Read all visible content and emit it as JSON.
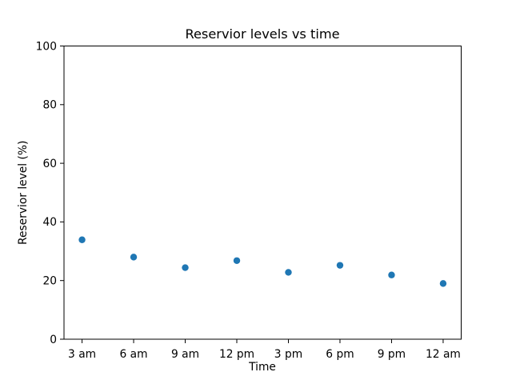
{
  "window": {
    "background_color": "#ffffff"
  },
  "chart_data": {
    "type": "scatter",
    "title": "Reservior levels vs time",
    "xlabel": "Time",
    "ylabel": "Reservior level (%)",
    "categories": [
      "3 am",
      "6 am",
      "9 am",
      "12 pm",
      "3 pm",
      "6 pm",
      "9 pm",
      "12 am"
    ],
    "values": [
      33.9,
      28.0,
      24.4,
      26.8,
      22.8,
      25.2,
      21.9,
      19.0
    ],
    "ylim": [
      0,
      100
    ],
    "yticks": [
      0,
      20,
      40,
      60,
      80,
      100
    ],
    "grid": false,
    "legend": "none",
    "marker": "circle",
    "marker_color": "#1f77b4",
    "axis_color": "#000000",
    "text_color": "#000000"
  }
}
